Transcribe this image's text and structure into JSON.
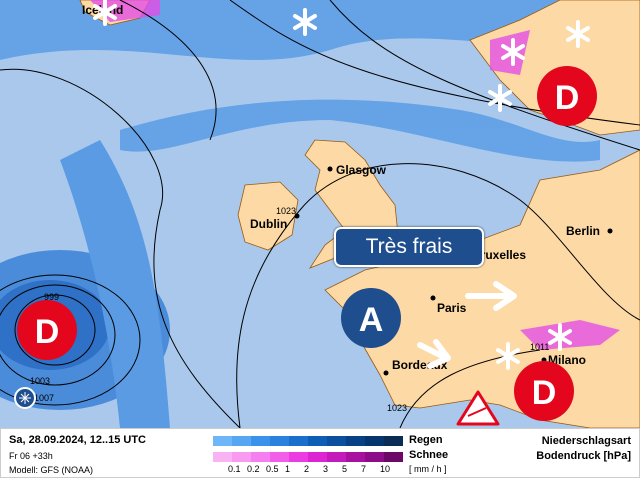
{
  "map": {
    "banner": "Très frais",
    "cities": [
      "Glasgow",
      "Dublin",
      "Berlin",
      "Bruxelles",
      "Paris",
      "Bordeaux",
      "Milano",
      "Iceland"
    ],
    "isobars": [
      "999",
      "1003",
      "1007",
      "1023",
      "1023",
      "1011"
    ],
    "pressure_centers": [
      {
        "label": "D",
        "type": "low"
      },
      {
        "label": "D",
        "type": "low"
      },
      {
        "label": "D",
        "type": "low"
      },
      {
        "label": "A",
        "type": "high"
      }
    ],
    "colors": {
      "sea": "#a9c8ec",
      "land": "#fcd9a5",
      "low": "#e3061c",
      "high": "#1f4e8f"
    },
    "icons": [
      "snowflake-icon",
      "wind-arrow-icon",
      "wind-warning-icon",
      "frost-icon"
    ]
  },
  "legend": {
    "date": "Sa, 28.09.2024, 12..15 UTC",
    "run": "Fr 06 +33h",
    "model": "Modell: GFS (NOAA)",
    "rain_label": "Regen",
    "snow_label": "Schnee",
    "unit": "[ mm / h ]",
    "ticks": [
      "0.1",
      "0.2",
      "0.5",
      "1",
      "2",
      "3",
      "5",
      "7",
      "10"
    ],
    "rain_colors": [
      "#6fb6f8",
      "#56a6f2",
      "#3b92ea",
      "#2a82de",
      "#1a6fcc",
      "#0f5eb5",
      "#0b4f9e",
      "#084285",
      "#06366d",
      "#0b2c55"
    ],
    "snow_colors": [
      "#f7b3f2",
      "#f79af0",
      "#f57ff0",
      "#f25ee9",
      "#ec3be2",
      "#dc24d4",
      "#c41abc",
      "#a8119f",
      "#8d0c88",
      "#6e0868"
    ],
    "title1": "Niederschlagsart",
    "title2": "Bodendruck [hPa]"
  }
}
